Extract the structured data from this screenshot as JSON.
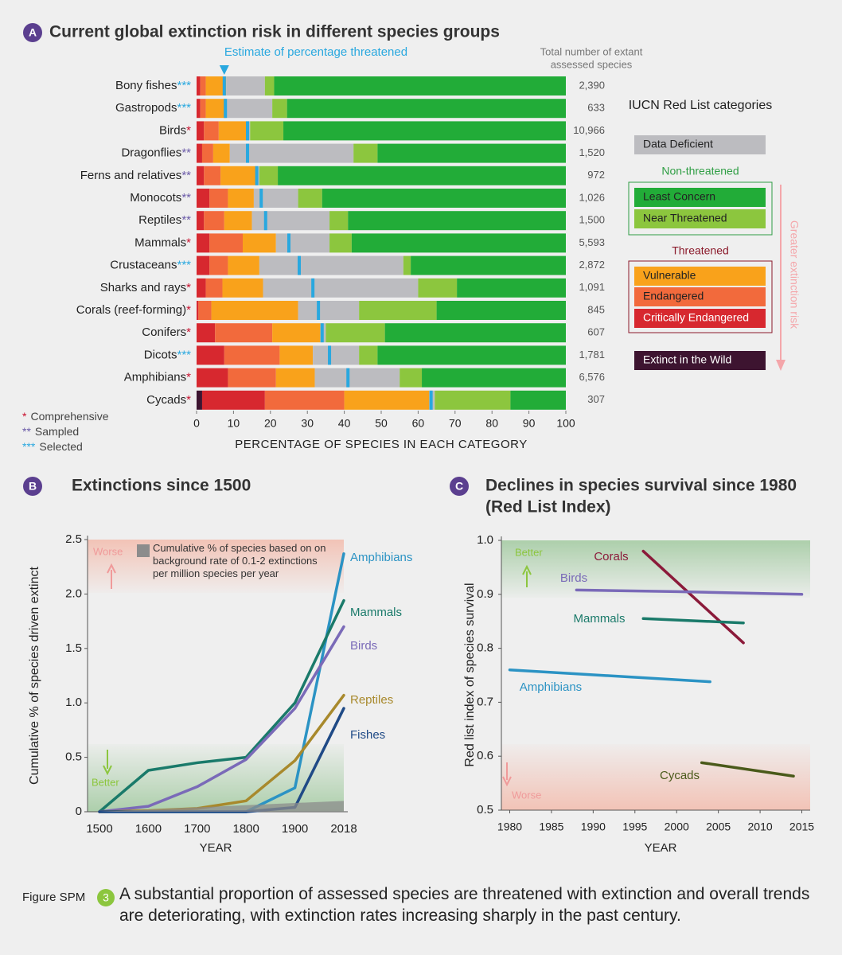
{
  "chart_data": [
    {
      "type": "bar",
      "panel": "A",
      "title": "Current global extinction risk in different species groups",
      "categories": [
        "Bony fishes",
        "Gastropods",
        "Birds",
        "Dragonflies",
        "Ferns and relatives",
        "Monocots",
        "Reptiles",
        "Mammals",
        "Crustaceans",
        "Sharks and rays",
        "Corals (reef-forming)",
        "Conifers",
        "Dicots",
        "Amphibians",
        "Cycads"
      ],
      "assessment": [
        "***",
        "***",
        "*",
        "**",
        "**",
        "**",
        "**",
        "*",
        "***",
        "*",
        "*",
        "*",
        "***",
        "*",
        "*"
      ],
      "assessment_notes": [
        {
          "symbol": "*",
          "label": "Comprehensive",
          "color": "#c8102e"
        },
        {
          "symbol": "**",
          "label": "Sampled",
          "color": "#6b5ba8"
        },
        {
          "symbol": "***",
          "label": "Selected",
          "color": "#29a8df"
        }
      ],
      "series": [
        {
          "name": "Extinct in the Wild",
          "color": "#3d1430",
          "values": [
            0,
            0,
            0,
            0,
            0,
            0,
            0,
            0,
            0,
            0,
            0,
            0,
            0,
            0,
            1.5
          ]
        },
        {
          "name": "Critically Endangered",
          "color": "#d7282f",
          "values": [
            1,
            1,
            2,
            1.5,
            2,
            3.5,
            2,
            3.5,
            3.5,
            2.5,
            0.5,
            5,
            7.5,
            8.5,
            17
          ]
        },
        {
          "name": "Endangered",
          "color": "#f26a3c",
          "values": [
            1.5,
            1.5,
            4,
            3,
            4.5,
            5,
            5.5,
            9,
            5,
            4.5,
            3.5,
            15.5,
            15,
            13,
            21.5
          ]
        },
        {
          "name": "Vulnerable",
          "color": "#f9a21b",
          "values": [
            5.5,
            5.5,
            7.5,
            4.5,
            9.5,
            7,
            7.5,
            9,
            8.5,
            11,
            23.5,
            13,
            9,
            10.5,
            23
          ]
        },
        {
          "name": "Data Deficient",
          "color": "#bcbcc0",
          "values": [
            10.5,
            12.5,
            1,
            33.5,
            1,
            12,
            21,
            14.5,
            39,
            42,
            16.5,
            1.5,
            12.5,
            23,
            1.5
          ]
        },
        {
          "name": "Near Threatened",
          "color": "#8cc63e",
          "values": [
            2.5,
            4,
            9,
            6.5,
            5,
            6.5,
            5,
            6,
            2,
            10.5,
            21,
            16,
            5,
            6,
            20.5
          ]
        },
        {
          "name": "Least Concern",
          "color": "#22ac38",
          "values": [
            79,
            75.5,
            76.5,
            51,
            78,
            66,
            59,
            58,
            42,
            29.5,
            35,
            49,
            51,
            39,
            15
          ]
        }
      ],
      "estimate": {
        "name": "Estimate of percentage threatened",
        "color": "#29a8df",
        "values": [
          7.5,
          7.8,
          13.8,
          13.8,
          16.3,
          17.5,
          18.7,
          25,
          27.8,
          31.5,
          33,
          34,
          36,
          41,
          63.5
        ]
      },
      "totals": {
        "title": [
          "Total number of extant",
          "assessed species"
        ],
        "labels": [
          "2,390",
          "633",
          "10,966",
          "1,520",
          "972",
          "1,026",
          "1,500",
          "5,593",
          "2,872",
          "1,091",
          "845",
          "607",
          "1,781",
          "6,576",
          "307"
        ]
      },
      "xlim": [
        0,
        100
      ],
      "xticks": [
        0,
        10,
        20,
        30,
        40,
        50,
        60,
        70,
        80,
        90,
        100
      ],
      "xlabel": "PERCENTAGE OF SPECIES IN EACH CATEGORY",
      "legend": {
        "title": "IUCN Red List categories",
        "groups": [
          {
            "label": "Non-threatened",
            "color": "#2f9e44"
          },
          {
            "label": "Threatened",
            "color": "#8b1a2b"
          }
        ],
        "risk_label": "Greater extinction risk"
      }
    },
    {
      "type": "line",
      "panel": "B",
      "title": "Extinctions since 1500",
      "categories": [
        "1500",
        "1600",
        "1700",
        "1800",
        "1900",
        "2018"
      ],
      "series": [
        {
          "name": "Amphibians",
          "color": "#2b93c4",
          "values": [
            0,
            0,
            0,
            0,
            0.22,
            2.37
          ]
        },
        {
          "name": "Mammals",
          "color": "#1a7a6a",
          "values": [
            0,
            0.38,
            0.45,
            0.5,
            1.0,
            1.94
          ]
        },
        {
          "name": "Birds",
          "color": "#7a6ab8",
          "values": [
            0,
            0.05,
            0.23,
            0.48,
            0.95,
            1.7
          ]
        },
        {
          "name": "Reptiles",
          "color": "#a8892c",
          "values": [
            0,
            0.01,
            0.03,
            0.1,
            0.47,
            1.07
          ]
        },
        {
          "name": "Fishes",
          "color": "#1f4a86",
          "values": [
            0,
            0,
            0,
            0,
            0.04,
            0.95
          ]
        },
        {
          "name": "Cumulative % of species based on on background rate of 0.1-2 extinctions per million species per year",
          "type": "area",
          "color": "#8c8c8c",
          "values": [
            0,
            0.02,
            0.04,
            0.06,
            0.08,
            0.1
          ]
        }
      ],
      "ylim": [
        0,
        2.5
      ],
      "yticks": [
        0,
        0.5,
        {
          "value": 1,
          "label": "1.0"
        },
        1.5,
        {
          "value": 2,
          "label": "2.0"
        },
        2.5
      ],
      "xlabel": "YEAR",
      "ylabel": "Cumulative % of species driven extinct",
      "annotations": {
        "worse": "Worse",
        "better": "Better"
      }
    },
    {
      "type": "line",
      "panel": "C",
      "title": [
        "Declines in species survival since 1980",
        "(Red List Index)"
      ],
      "series": [
        {
          "name": "Corals",
          "color": "#8b1a3a",
          "x": [
            1996,
            2008
          ],
          "values": [
            0.98,
            0.81
          ]
        },
        {
          "name": "Birds",
          "color": "#7a6ab8",
          "x": [
            1988,
            2000,
            2012,
            2015
          ],
          "values": [
            0.908,
            0.905,
            0.901,
            0.9
          ]
        },
        {
          "name": "Mammals",
          "color": "#1a7a6a",
          "x": [
            1996,
            2008
          ],
          "values": [
            0.855,
            0.847
          ]
        },
        {
          "name": "Amphibians",
          "color": "#2b93c4",
          "x": [
            1980,
            2004
          ],
          "values": [
            0.76,
            0.738
          ]
        },
        {
          "name": "Cycads",
          "color": "#4a5a1a",
          "x": [
            2003,
            2014
          ],
          "values": [
            0.588,
            0.563
          ]
        }
      ],
      "xlim": [
        1979,
        2016
      ],
      "xticks": [
        1980,
        1985,
        1990,
        1995,
        2000,
        2005,
        2010,
        2015
      ],
      "ylim": [
        0.5,
        1
      ],
      "yticks": [
        0.5,
        0.6,
        0.7,
        0.8,
        0.9,
        {
          "value": 1,
          "label": "1.0"
        }
      ],
      "xlabel": "YEAR",
      "ylabel": "Red list index of species survival",
      "annotations": {
        "better": "Better",
        "worse": "Worse"
      }
    }
  ],
  "caption": {
    "label": "Figure SPM",
    "number": "3",
    "text": "A substantial proportion of assessed species are threatened with extinction and overall trends are deteriorating, with extinction rates increasing sharply in the past century."
  }
}
